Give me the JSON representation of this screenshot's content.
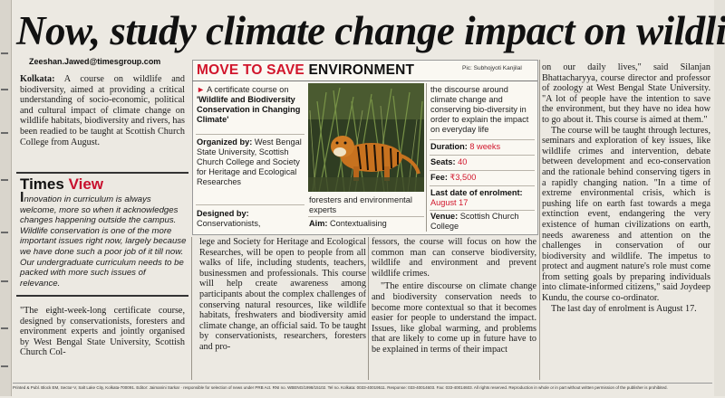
{
  "headline": "Now, study climate change impact on wildlife",
  "byline": "Zeeshan.Jawed@timesgroup.com",
  "intro": {
    "lead": "Kolkata:",
    "text": " A course on wildlife and biodiversity, aimed at providing a critical understanding of socio-economic, political and cultural impact of climate change on wildlife habitats, biodiversity and rivers, has been readied to be taught at Scottish Church College from August."
  },
  "times_view": {
    "title_word1": "Times",
    "title_word2": "View",
    "dropcap": "I",
    "text": "nnovation in curriculum is always welcome, more so when it acknowledges changes happening outside the campus. Wildlife conservation is one of the more important issues right now, largely because we have done such a poor job of it till now. Our undergraduate curriculum needs to be packed with more such issues of relevance."
  },
  "col1_bottom": "\"The eight-week-long certificate course, designed by conservationists, foresters and environment experts and jointly organised by West Bengal State University, Scottish Church Col-",
  "box": {
    "title_red": "MOVE TO SAVE",
    "title_black": "ENVIRONMENT",
    "pic_credit": "Pic: Subhojyoti Kanjilal",
    "intro_a": "A certificate course on ",
    "intro_b": "'Wildlife and Biodiversity Conservation in Changing Climate'",
    "organized_label": "Organized by:",
    "organized_text": " West Bengal State University, Scottish Church College and Society for Heritage and Ecological Researches",
    "designed_label": "Designed by:",
    "designed_text": " Conservationists,",
    "designed_cont": "foresters and environmental experts",
    "aim_label": "Aim:",
    "aim_text": " Contextualising",
    "aim_cont": "the discourse around climate change and conserving bio-diversity in order to explain the impact on everyday life",
    "duration_label": "Duration:",
    "duration_value": "8 weeks",
    "seats_label": "Seats:",
    "seats_value": "40",
    "fee_label": "Fee:",
    "fee_value": "₹3,500",
    "lastdate_label": "Last date of enrolment:",
    "lastdate_value": "August 17",
    "venue_label": "Venue:",
    "venue_value": "Scottish Church College"
  },
  "col2": "lege and Society for Heritage and Ecological Researches, will be open to people from all walks of life, including students, teachers, businessmen and professionals. This course will help create awareness among participants about the complex challenges of conserving natural resources, like wildlife habitats, freshwaters and biodiversity amid climate change, an official said. To be taught by conservationists, researchers, foresters and pro-",
  "col3": {
    "p1": "fessors, the course will focus on how the common man can conserve biodiversity, wildlife and environment and prevent wildlife crimes.",
    "p2": "\"The entire discourse on climate change and biodiversity conservation needs to become more contextual so that it becomes easier for people to understand the impact. Issues, like global warming, and problems that are likely to come up in future have to be explained in terms of their impact"
  },
  "col4": {
    "p1": "on our daily lives,\" said Silanjan Bhattacharyya, course director and professor of zoology at West Bengal State University. \"A lot of people have the intention to save the environment, but they have no idea how to go about it. This course is aimed at them.\"",
    "p2": "The course will be taught through lectures, seminars and exploration of key issues, like wildlife crimes and intervention, debate between development and eco-conservation and the rationale behind conserving tigers in a rapidly changing nation. \"In a time of extreme environmental crisis, which is pushing life on earth fast towards a mega extinction event, endangering the very existence of human civilizations on earth, needs awareness and attention on the challenges in conservation of our biodiversity and wildlife. The impetus to protect and augment nature's role must come from setting goals by preparing individuals into climate-informed citizens,\" said Joydeep Kundu, the course co-ordinator.",
    "p3": "The last day of enrolment is August 17."
  },
  "footer": "Printed & Publ. Block EM, Sector-V, Salt Lake City, Kolkata-700091. Editor: Jaimanini Sarkar · responsible for selection of news under PRB Act. RNI no. WBENG/1998/15102. Tel no. Kolkata: 0033-40019511. Response: 033-40014603. Fax: 033-40014603. All rights reserved. Reproduction in whole or in part without written permission of the publisher is prohibited.",
  "colors": {
    "accent_red": "#d1162c",
    "paper": "#ece9e2",
    "box_bg": "#faf8f2"
  }
}
